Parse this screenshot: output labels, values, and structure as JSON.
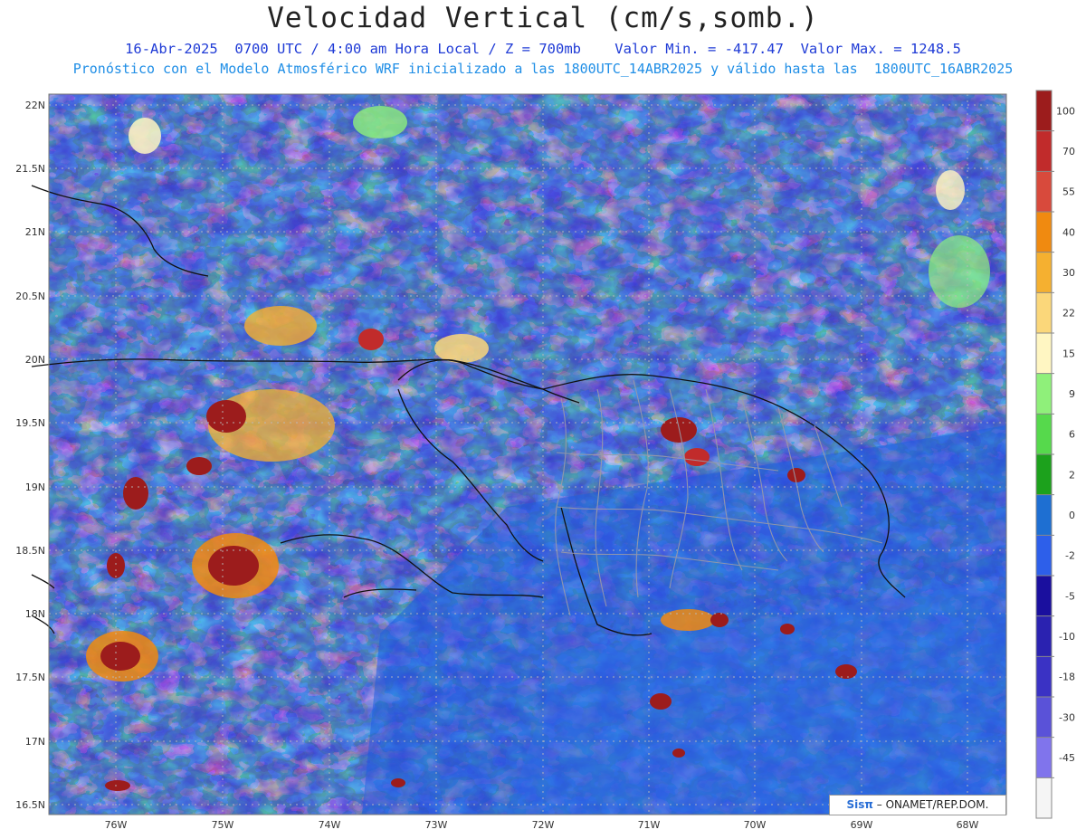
{
  "title": "Velocidad Vertical (cm/s,somb.)",
  "subtitle_line1": "16-Abr-2025  0700 UTC / 4:00 am Hora Local / Z = 700mb    Valor Min. = -417.47  Valor Max. = 1248.5",
  "subtitle_line2": "Pronóstico con el Modelo Atmosférico WRF inicializado a las 1800UTC_14ABR2025 y válido hasta las  1800UTC_16ABR2025",
  "lat_labels": [
    "22N",
    "21.5N",
    "21N",
    "20.5N",
    "20N",
    "19.5N",
    "19N",
    "18.5N",
    "18N",
    "17.5N",
    "17N",
    "16.5N"
  ],
  "lon_labels": [
    "76W",
    "75W",
    "74W",
    "73W",
    "72W",
    "71W",
    "70W",
    "69W",
    "68W"
  ],
  "colorbar": {
    "labels": [
      "100",
      "70",
      "55",
      "40",
      "30",
      "22",
      "15",
      "9",
      "6",
      "2",
      "0",
      "-2",
      "-5",
      "-10",
      "-18",
      "-30",
      "-45"
    ],
    "colors": [
      "#9c1c1c",
      "#c12b2b",
      "#d84a3c",
      "#f08a10",
      "#f5b030",
      "#fbd77a",
      "#fff6c2",
      "#8ff07a",
      "#56d94c",
      "#1ca11c",
      "#1e6fd2",
      "#2d5fea",
      "#1a0f9e",
      "#2a22b0",
      "#3a32c4",
      "#5a52d8",
      "#8074ec",
      "#f5f5f5"
    ]
  },
  "credit": {
    "brand": "Sisπ",
    "text": "– ONAMET/REP.DOM."
  }
}
